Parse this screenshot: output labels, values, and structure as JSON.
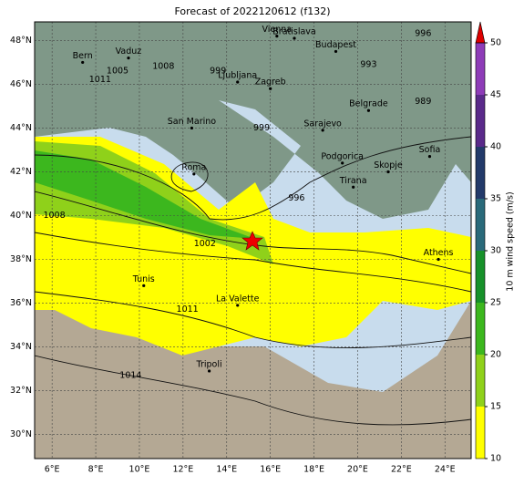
{
  "map": {
    "title": "Forecast of 2022120612 (f132)",
    "lonlim": [
      5.2,
      25.2
    ],
    "latlim": [
      28.9,
      48.85
    ],
    "lonticks": [
      {
        "value": 6,
        "label": "6°E"
      },
      {
        "value": 8,
        "label": "8°E"
      },
      {
        "value": 10,
        "label": "10°E"
      },
      {
        "value": 12,
        "label": "12°E"
      },
      {
        "value": 14,
        "label": "14°E"
      },
      {
        "value": 16,
        "label": "16°E"
      },
      {
        "value": 18,
        "label": "18°E"
      },
      {
        "value": 20,
        "label": "20°E"
      },
      {
        "value": 22,
        "label": "22°E"
      },
      {
        "value": 24,
        "label": "24°E"
      }
    ],
    "latticks": [
      {
        "value": 30,
        "label": "30°N"
      },
      {
        "value": 32,
        "label": "32°N"
      },
      {
        "value": 34,
        "label": "34°N"
      },
      {
        "value": 36,
        "label": "36°N"
      },
      {
        "value": 38,
        "label": "38°N"
      },
      {
        "value": 40,
        "label": "40°N"
      },
      {
        "value": 42,
        "label": "42°N"
      },
      {
        "value": 44,
        "label": "44°N"
      },
      {
        "value": 46,
        "label": "46°N"
      },
      {
        "value": 48,
        "label": "48°N"
      }
    ],
    "cities": [
      {
        "name": "Bern",
        "lon": 7.4,
        "lat": 47.0
      },
      {
        "name": "Vaduz",
        "lon": 9.5,
        "lat": 47.2
      },
      {
        "name": "Vienna",
        "lon": 16.3,
        "lat": 48.2
      },
      {
        "name": "Bratislava",
        "lon": 17.1,
        "lat": 48.1
      },
      {
        "name": "Budapest",
        "lon": 19.0,
        "lat": 47.5
      },
      {
        "name": "Ljubljana",
        "lon": 14.5,
        "lat": 46.1
      },
      {
        "name": "Zagreb",
        "lon": 16.0,
        "lat": 45.8
      },
      {
        "name": "San Marino",
        "lon": 12.4,
        "lat": 44.0
      },
      {
        "name": "Sarajevo",
        "lon": 18.4,
        "lat": 43.9
      },
      {
        "name": "Belgrade",
        "lon": 20.5,
        "lat": 44.8
      },
      {
        "name": "Roma",
        "lon": 12.5,
        "lat": 41.9
      },
      {
        "name": "Podgorica",
        "lon": 19.3,
        "lat": 42.4
      },
      {
        "name": "Skopje",
        "lon": 21.4,
        "lat": 42.0
      },
      {
        "name": "Sofia",
        "lon": 23.3,
        "lat": 42.7
      },
      {
        "name": "Tirana",
        "lon": 19.8,
        "lat": 41.3
      },
      {
        "name": "Athens",
        "lon": 23.7,
        "lat": 38.0
      },
      {
        "name": "Tunis",
        "lon": 10.2,
        "lat": 36.8
      },
      {
        "name": "La Valette",
        "lon": 14.5,
        "lat": 35.9
      },
      {
        "name": "Tripoli",
        "lon": 13.2,
        "lat": 32.9
      }
    ],
    "isobar_labels": [
      {
        "value": 1002,
        "lon": 13.0,
        "lat": 38.7
      },
      {
        "value": 1008,
        "lon": 6.1,
        "lat": 40.0
      },
      {
        "value": 1011,
        "lon": 8.2,
        "lat": 46.2
      },
      {
        "value": 1011,
        "lon": 12.2,
        "lat": 35.7
      },
      {
        "value": 1014,
        "lon": 9.6,
        "lat": 32.7
      },
      {
        "value": 996,
        "lon": 17.2,
        "lat": 40.8
      },
      {
        "value": 999,
        "lon": 15.6,
        "lat": 44.0
      },
      {
        "value": 999,
        "lon": 13.6,
        "lat": 46.6
      },
      {
        "value": 1005,
        "lon": 9.0,
        "lat": 46.6
      },
      {
        "value": 1008,
        "lon": 11.1,
        "lat": 46.8
      },
      {
        "value": 993,
        "lon": 20.5,
        "lat": 46.9
      },
      {
        "value": 996,
        "lon": 23.0,
        "lat": 48.3
      },
      {
        "value": 989,
        "lon": 23.0,
        "lat": 45.2
      }
    ],
    "colorbar": {
      "label": "10 m wind speed (m/s)",
      "lim": [
        10,
        50
      ],
      "ticks": [
        10,
        15,
        20,
        25,
        30,
        35,
        40,
        45,
        50
      ],
      "colors": [
        "#ffff00",
        "#8fd11a",
        "#3cb71e",
        "#17912a",
        "#2a6a7a",
        "#233a6a",
        "#5a2a8a",
        "#8e3cb8"
      ],
      "extend_color": "#dd0000"
    }
  }
}
